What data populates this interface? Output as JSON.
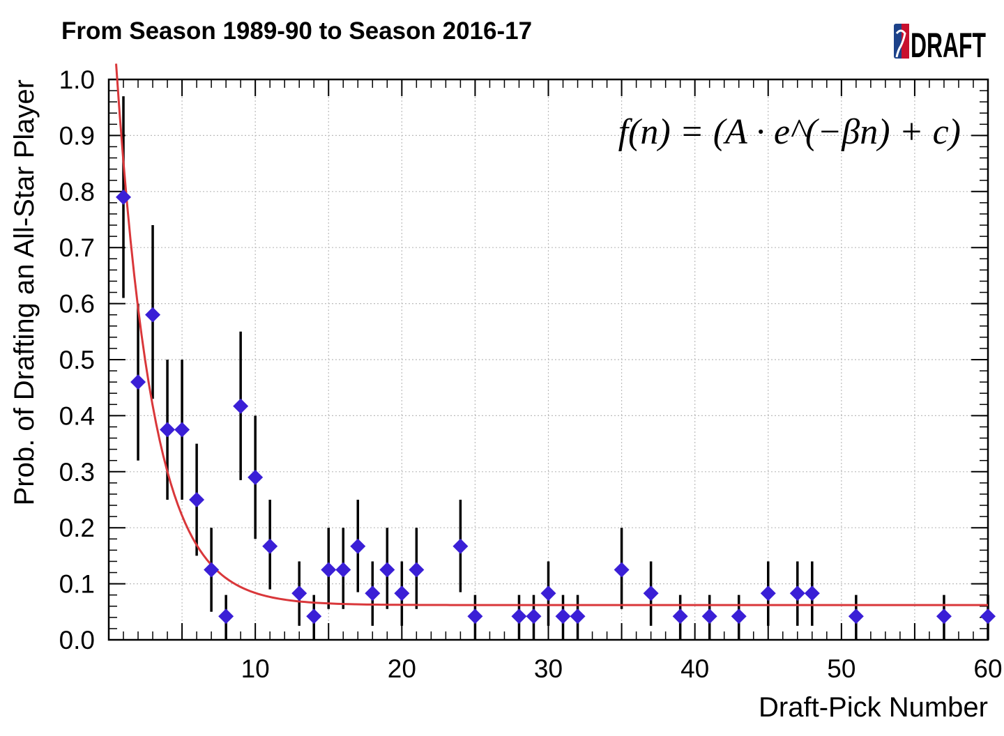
{
  "page": {
    "title": "From Season 1989-90 to Season 2016-17",
    "logo": "DRAFT"
  },
  "chart_data": {
    "type": "scatter",
    "title": "From Season 1989-90 to Season 2016-17",
    "xlabel": "Draft-Pick Number",
    "ylabel": "Prob. of Drafting an All-Star Player",
    "xlim": [
      0,
      60
    ],
    "ylim": [
      0,
      1
    ],
    "xticks": [
      10,
      20,
      30,
      40,
      50,
      60
    ],
    "yticks": [
      0.0,
      0.1,
      0.2,
      0.3,
      0.4,
      0.5,
      0.6,
      0.7,
      0.8,
      0.9,
      1.0
    ],
    "ytick_labels": [
      "0.0",
      "0.1",
      "0.2",
      "0.3",
      "0.4",
      "0.5",
      "0.6",
      "0.7",
      "0.8",
      "0.9",
      "1.0"
    ],
    "grid": true,
    "annotation": "f(n) = (A · e^(−βn) + c)",
    "colors": {
      "points": "#3a1fd6",
      "fit": "#d9373a",
      "errorbars": "#000000"
    },
    "points": [
      {
        "x": 1,
        "y": 0.79,
        "lo": 0.61,
        "hi": 0.97
      },
      {
        "x": 2,
        "y": 0.46,
        "lo": 0.32,
        "hi": 0.6
      },
      {
        "x": 3,
        "y": 0.58,
        "lo": 0.43,
        "hi": 0.74
      },
      {
        "x": 4,
        "y": 0.375,
        "lo": 0.25,
        "hi": 0.5
      },
      {
        "x": 5,
        "y": 0.375,
        "lo": 0.25,
        "hi": 0.5
      },
      {
        "x": 6,
        "y": 0.25,
        "lo": 0.15,
        "hi": 0.35
      },
      {
        "x": 7,
        "y": 0.125,
        "lo": 0.05,
        "hi": 0.2
      },
      {
        "x": 8,
        "y": 0.042,
        "lo": 0.0,
        "hi": 0.08
      },
      {
        "x": 9,
        "y": 0.417,
        "lo": 0.285,
        "hi": 0.55
      },
      {
        "x": 10,
        "y": 0.29,
        "lo": 0.18,
        "hi": 0.4
      },
      {
        "x": 11,
        "y": 0.167,
        "lo": 0.09,
        "hi": 0.25
      },
      {
        "x": 13,
        "y": 0.083,
        "lo": 0.025,
        "hi": 0.14
      },
      {
        "x": 14,
        "y": 0.042,
        "lo": 0.0,
        "hi": 0.08
      },
      {
        "x": 15,
        "y": 0.125,
        "lo": 0.055,
        "hi": 0.2
      },
      {
        "x": 16,
        "y": 0.125,
        "lo": 0.055,
        "hi": 0.2
      },
      {
        "x": 17,
        "y": 0.167,
        "lo": 0.085,
        "hi": 0.25
      },
      {
        "x": 18,
        "y": 0.083,
        "lo": 0.025,
        "hi": 0.14
      },
      {
        "x": 19,
        "y": 0.125,
        "lo": 0.055,
        "hi": 0.2
      },
      {
        "x": 20,
        "y": 0.083,
        "lo": 0.025,
        "hi": 0.14
      },
      {
        "x": 21,
        "y": 0.125,
        "lo": 0.055,
        "hi": 0.2
      },
      {
        "x": 24,
        "y": 0.167,
        "lo": 0.085,
        "hi": 0.25
      },
      {
        "x": 25,
        "y": 0.042,
        "lo": 0.0,
        "hi": 0.08
      },
      {
        "x": 28,
        "y": 0.042,
        "lo": 0.0,
        "hi": 0.08
      },
      {
        "x": 29,
        "y": 0.042,
        "lo": 0.0,
        "hi": 0.08
      },
      {
        "x": 30,
        "y": 0.083,
        "lo": 0.025,
        "hi": 0.14
      },
      {
        "x": 31,
        "y": 0.042,
        "lo": 0.0,
        "hi": 0.08
      },
      {
        "x": 32,
        "y": 0.042,
        "lo": 0.0,
        "hi": 0.08
      },
      {
        "x": 35,
        "y": 0.125,
        "lo": 0.055,
        "hi": 0.2
      },
      {
        "x": 37,
        "y": 0.083,
        "lo": 0.025,
        "hi": 0.14
      },
      {
        "x": 39,
        "y": 0.042,
        "lo": 0.0,
        "hi": 0.08
      },
      {
        "x": 41,
        "y": 0.042,
        "lo": 0.0,
        "hi": 0.08
      },
      {
        "x": 43,
        "y": 0.042,
        "lo": 0.0,
        "hi": 0.08
      },
      {
        "x": 45,
        "y": 0.083,
        "lo": 0.025,
        "hi": 0.14
      },
      {
        "x": 47,
        "y": 0.083,
        "lo": 0.025,
        "hi": 0.14
      },
      {
        "x": 48,
        "y": 0.083,
        "lo": 0.025,
        "hi": 0.14
      },
      {
        "x": 51,
        "y": 0.042,
        "lo": 0.0,
        "hi": 0.08
      },
      {
        "x": 57,
        "y": 0.042,
        "lo": 0.0,
        "hi": 0.08
      },
      {
        "x": 60,
        "y": 0.042,
        "lo": 0.0,
        "hi": 0.08
      }
    ],
    "fit": {
      "A": 1.18,
      "beta": 0.4,
      "c": 0.062,
      "x_start": 0.5,
      "x_end": 60
    }
  }
}
